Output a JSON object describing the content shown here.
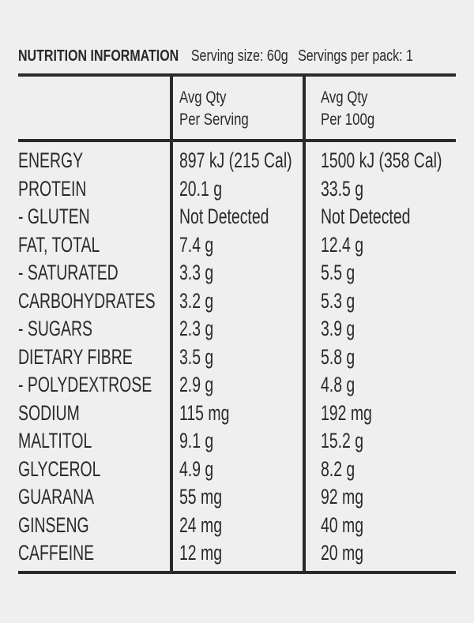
{
  "header": {
    "title": "NUTRITION INFORMATION",
    "serving_size": "Serving size: 60g",
    "servings_per_pack": "Servings per pack: 1"
  },
  "columns": {
    "per_serving": [
      "Avg Qty",
      "Per Serving"
    ],
    "per_100g": [
      "Avg Qty",
      "Per 100g"
    ]
  },
  "rows": [
    {
      "name": "ENERGY",
      "per_serving": "897 kJ (215 Cal)",
      "per_100g": "1500 kJ (358 Cal)"
    },
    {
      "name": "PROTEIN",
      "per_serving": "20.1 g",
      "per_100g": "33.5 g"
    },
    {
      "name": " - GLUTEN",
      "per_serving": "Not Detected",
      "per_100g": "Not Detected"
    },
    {
      "name": "FAT, TOTAL",
      "per_serving": "7.4 g",
      "per_100g": "12.4 g"
    },
    {
      "name": " - SATURATED",
      "per_serving": "3.3 g",
      "per_100g": "5.5 g"
    },
    {
      "name": "CARBOHYDRATES",
      "per_serving": "3.2 g",
      "per_100g": "5.3 g"
    },
    {
      "name": " - SUGARS",
      "per_serving": "2.3 g",
      "per_100g": "3.9 g"
    },
    {
      "name": "DIETARY FIBRE",
      "per_serving": "3.5 g",
      "per_100g": "5.8 g"
    },
    {
      "name": " - POLYDEXTROSE",
      "per_serving": "2.9 g",
      "per_100g": "4.8 g"
    },
    {
      "name": "SODIUM",
      "per_serving": "115 mg",
      "per_100g": "192 mg"
    },
    {
      "name": "MALTITOL",
      "per_serving": "9.1 g",
      "per_100g": "15.2 g"
    },
    {
      "name": "GLYCEROL",
      "per_serving": "4.9 g",
      "per_100g": "8.2 g"
    },
    {
      "name": "GUARANA",
      "per_serving": "55 mg",
      "per_100g": "92 mg"
    },
    {
      "name": "GINSENG",
      "per_serving": "24 mg",
      "per_100g": "40 mg"
    },
    {
      "name": "CAFFEINE",
      "per_serving": "12 mg",
      "per_100g": "20 mg"
    }
  ]
}
